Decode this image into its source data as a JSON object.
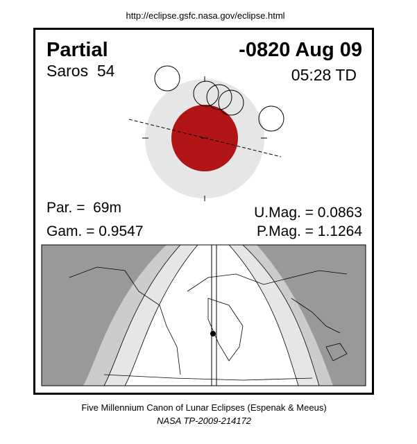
{
  "header": {
    "url": "http://eclipse.gsfc.nasa.gov/eclipse.html"
  },
  "eclipse": {
    "type": "Partial",
    "date": "-0820 Aug 09",
    "saros": "Saros  54",
    "time": "05:28 TD"
  },
  "params": {
    "par": "Par. =  69m",
    "gam": "Gam. = 0.9547",
    "umag": "U.Mag. = 0.0863",
    "pmag": "P.Mag. = 1.1264"
  },
  "footer": {
    "canon": "Five Millennium Canon of Lunar Eclipses (Espenak & Meeus)",
    "ref": "NASA TP-2009-214172"
  }
}
